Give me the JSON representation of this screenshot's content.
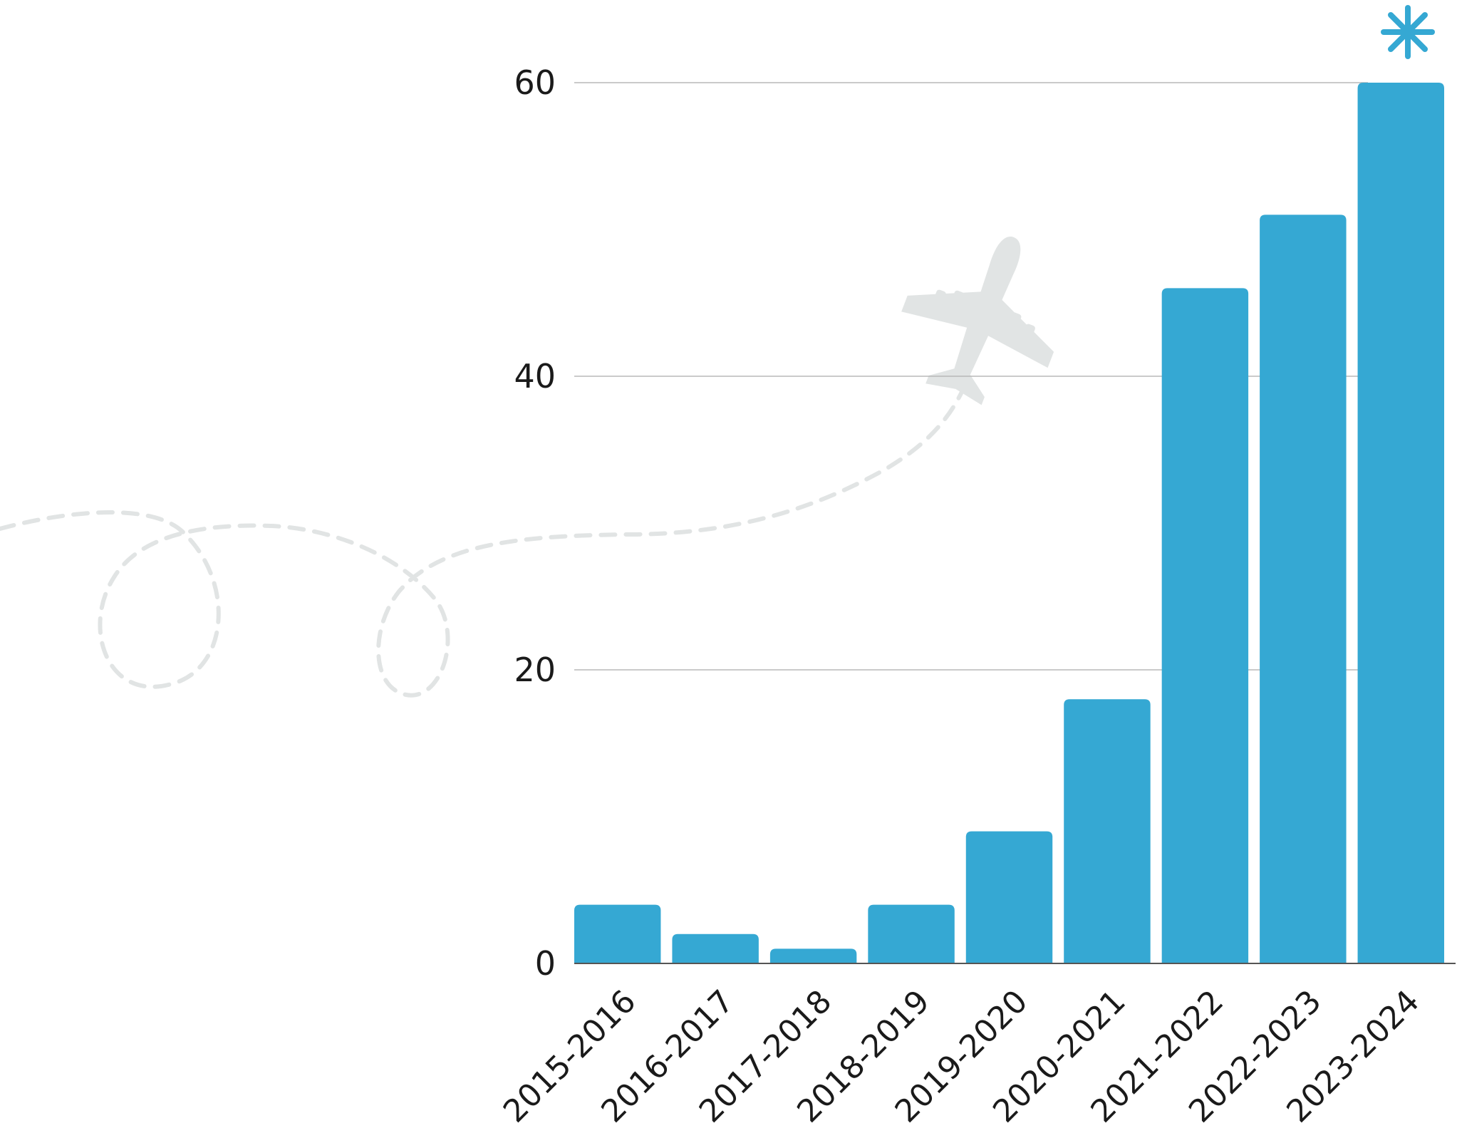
{
  "chart_data": {
    "type": "bar",
    "title": "",
    "xlabel": "",
    "ylabel": "",
    "categories": [
      "2015-2016",
      "2016-2017",
      "2017-2018",
      "2018-2019",
      "2019-2020",
      "2020-2021",
      "2021-2022",
      "2022-2023",
      "2023-2024"
    ],
    "values": [
      4,
      2,
      1,
      4,
      9,
      18,
      46,
      51,
      60
    ],
    "ylim": [
      0,
      60
    ],
    "yticks": [
      0,
      20,
      40,
      60
    ],
    "grid": true,
    "legend": "none"
  },
  "colors": {
    "bar": "#35a8d3",
    "decoration": "#e1e4e4",
    "accent_asterisk": "#35a8d3"
  },
  "decorations": {
    "plane_icon": "airplane-icon",
    "flight_path": "dashed-loop-path",
    "highlight_icon": "asterisk-icon"
  }
}
